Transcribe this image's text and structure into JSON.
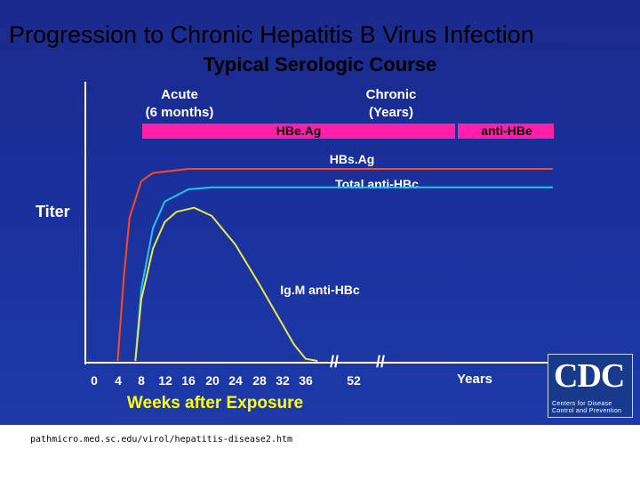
{
  "slide": {
    "title": "Progression to Chronic Hepatitis B Virus Infection",
    "subtitle": "Typical Serologic Course",
    "source_url": "pathmicro.med.sc.edu/virol/hepatitis-disease2.htm",
    "logo_text": "CDC",
    "logo_tagline_1": "Centers for Disease",
    "logo_tagline_2": "Control and Prevention",
    "background_color": "#1b2e9a",
    "title_color": "#000000"
  },
  "chart_data": {
    "type": "line",
    "title": "Typical Serologic Course",
    "xlabel": "Weeks after Exposure",
    "ylabel": "Titer",
    "x_ticks": [
      "0",
      "4",
      "8",
      "12",
      "16",
      "20",
      "24",
      "28",
      "32",
      "36",
      "52"
    ],
    "x_units_right": "Years",
    "axis_break_marks": [
      "//",
      "//"
    ],
    "xlim": [
      0,
      60
    ],
    "ylim": [
      0,
      100
    ],
    "phases": [
      {
        "label_line1": "Acute",
        "label_line2": "(6 months)"
      },
      {
        "label_line1": "Chronic",
        "label_line2": "(Years)"
      }
    ],
    "bars": [
      {
        "name": "HBe.Ag",
        "color": "#ff1fa8",
        "start_week": 8,
        "end_week": 49
      },
      {
        "name": "anti-HBe",
        "color": "#ff1fa8",
        "start_week": 50,
        "end_week": 60
      }
    ],
    "series": [
      {
        "name": "HBs.Ag",
        "color": "#ff4a1a",
        "points": [
          [
            4,
            0
          ],
          [
            5,
            40
          ],
          [
            6,
            70
          ],
          [
            8,
            88
          ],
          [
            10,
            92
          ],
          [
            16,
            94
          ],
          [
            60,
            94
          ]
        ]
      },
      {
        "name": "Total anti-HBc",
        "color": "#22c6e8",
        "points": [
          [
            7,
            0
          ],
          [
            8,
            35
          ],
          [
            10,
            65
          ],
          [
            12,
            78
          ],
          [
            16,
            84
          ],
          [
            20,
            85
          ],
          [
            60,
            85
          ]
        ]
      },
      {
        "name": "Ig.M anti-HBc",
        "color": "#e8e84a",
        "points": [
          [
            7,
            0
          ],
          [
            8,
            30
          ],
          [
            10,
            55
          ],
          [
            12,
            68
          ],
          [
            14,
            73
          ],
          [
            17,
            75
          ],
          [
            20,
            71
          ],
          [
            24,
            57
          ],
          [
            28,
            38
          ],
          [
            32,
            18
          ],
          [
            34,
            8
          ],
          [
            36,
            1
          ],
          [
            38,
            0
          ]
        ]
      }
    ],
    "series_labels": [
      "HBs.Ag",
      "Total anti-HBc",
      "Ig.M anti-HBc"
    ],
    "colors": {
      "axis": "#ffffff",
      "text": "#ffffff",
      "bar_text": "#000000"
    }
  }
}
